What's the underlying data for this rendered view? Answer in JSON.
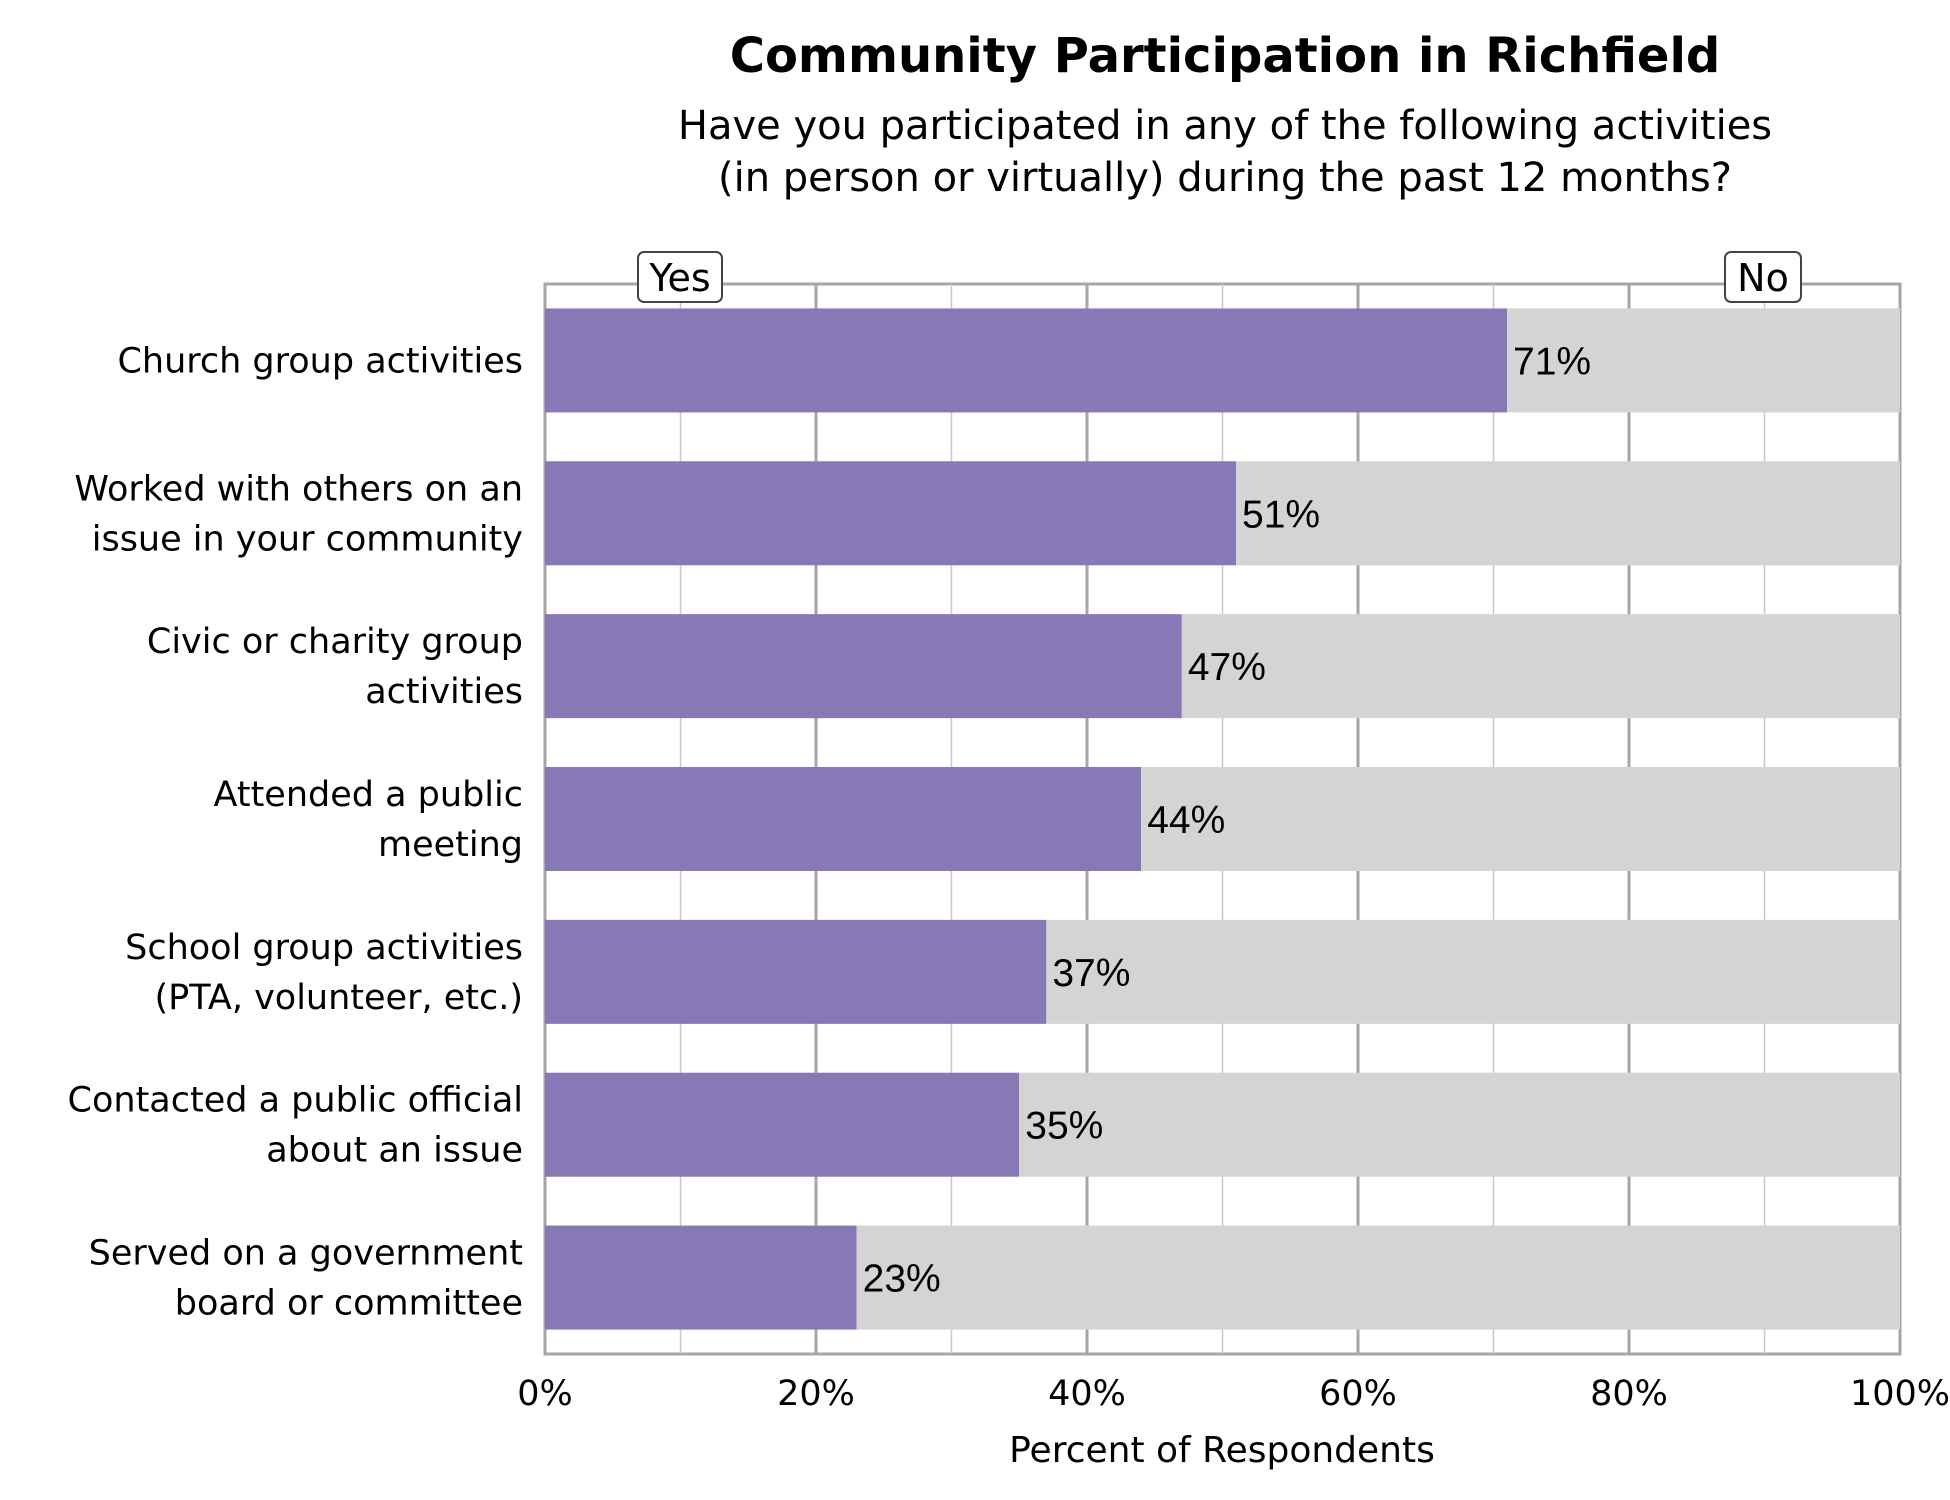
{
  "chart_data": {
    "type": "bar",
    "orientation": "horizontal",
    "stacked": true,
    "title": "Community Participation in Richfield",
    "subtitle_lines": [
      "Have you participated in any of the following activities",
      "(in person or virtually) during the past 12 months?"
    ],
    "categories": [
      "Church group activities",
      "Worked with others on an issue in your community",
      "Civic or charity group activities",
      "Attended a public meeting",
      "School group activities (PTA, volunteer, etc.)",
      "Contacted a public official about an issue",
      "Served on a government board or committee"
    ],
    "category_lines": [
      [
        "Church group activities"
      ],
      [
        "Worked with others on an",
        "issue in your community"
      ],
      [
        "Civic or charity group",
        "activities"
      ],
      [
        "Attended a public",
        "meeting"
      ],
      [
        "School group activities",
        "(PTA, volunteer, etc.)"
      ],
      [
        "Contacted a public official",
        "about an issue"
      ],
      [
        "Served on a government",
        "board or committee"
      ]
    ],
    "series": [
      {
        "name": "Yes",
        "values": [
          71,
          51,
          47,
          44,
          37,
          35,
          23
        ],
        "color": "#8878b5"
      },
      {
        "name": "No",
        "values": [
          29,
          49,
          53,
          56,
          63,
          65,
          77
        ],
        "color": "#d4d4d4"
      }
    ],
    "data_labels": [
      "71%",
      "51%",
      "47%",
      "44%",
      "37%",
      "35%",
      "23%"
    ],
    "xlabel": "Percent of Respondents",
    "ylabel": "",
    "xlim": [
      0,
      100
    ],
    "x_ticks": [
      "0%",
      "20%",
      "40%",
      "60%",
      "80%",
      "100%"
    ],
    "grid": true,
    "legend": [
      "Yes",
      "No"
    ],
    "legend_placement": "top"
  },
  "colors": {
    "gridline": "#c8c8c8",
    "gridline_major": "#a6a6a6",
    "axis": "#999999"
  }
}
